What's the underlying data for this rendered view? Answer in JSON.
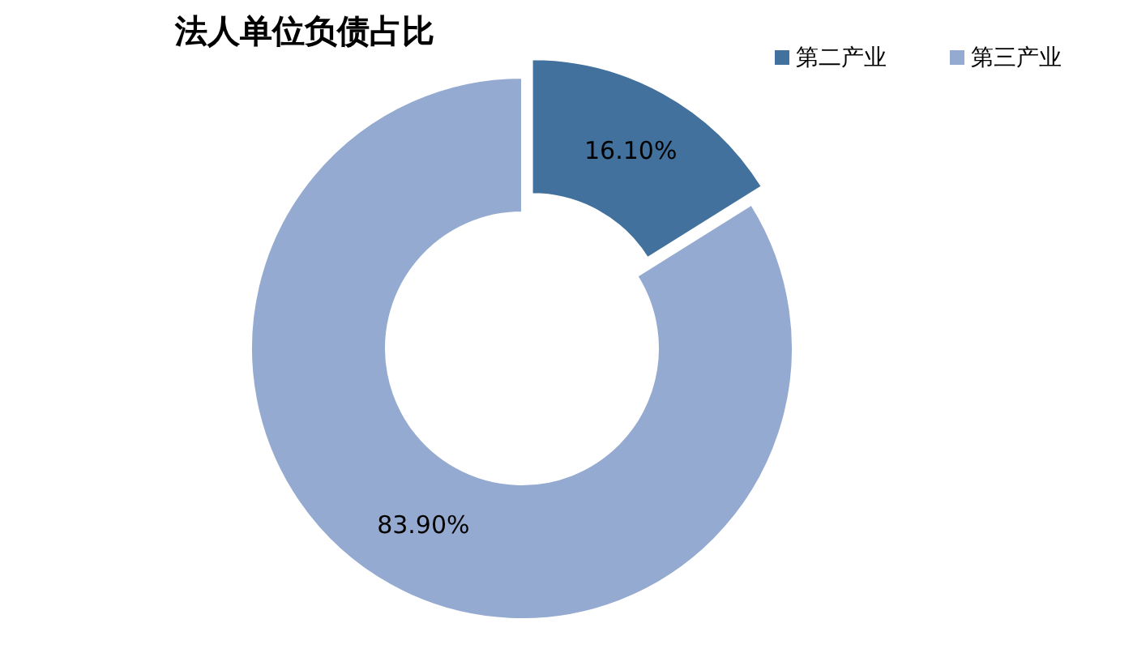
{
  "chart_data": {
    "type": "donut",
    "title": "法人单位负债占比",
    "categories": [
      "第二产业",
      "第三产业"
    ],
    "values": [
      16.1,
      83.9
    ],
    "colors": [
      "#41719c",
      "#95aad0"
    ],
    "value_labels": [
      "16.10%",
      "83.90%"
    ],
    "legend": "top right"
  }
}
